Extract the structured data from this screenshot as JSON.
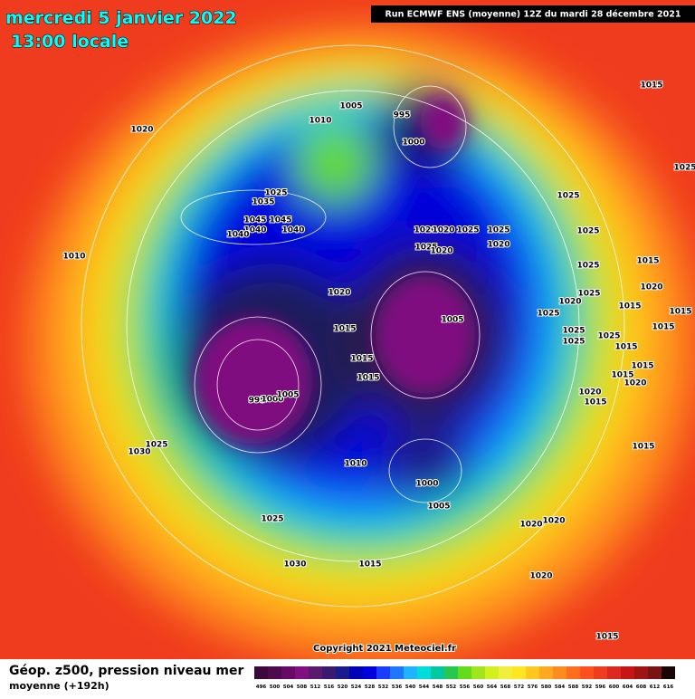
{
  "header": {
    "date": "mercredi 5 janvier 2022",
    "time": "13:00 locale",
    "run": "Run ECMWF ENS (moyenne) 12Z du mardi 28 décembre 2021"
  },
  "map": {
    "copyright": "Copyright 2021 Meteociel.fr",
    "isobar_labels": [
      1020,
      1010,
      1005,
      995,
      1000,
      1015,
      1025,
      1025,
      1035,
      1045,
      1045,
      1040,
      1040,
      1040,
      1020,
      1020,
      1025,
      1025,
      1020,
      1025,
      1020,
      1025,
      1025,
      1025,
      1015,
      1010,
      1020,
      1020,
      1025,
      1025,
      1015,
      1020,
      1015,
      1015,
      1005,
      1015,
      1025,
      1025,
      1025,
      1015,
      1015,
      1015,
      1015,
      1015,
      1020,
      1020,
      1015,
      995,
      1000,
      1005,
      1025,
      1030,
      1015,
      1010,
      1000,
      1005,
      1025,
      1020,
      1020,
      1030,
      1015,
      1020,
      1015
    ]
  },
  "footer": {
    "title": "Géop. z500, pression niveau mer",
    "subtitle": "moyenne  (+192h)"
  },
  "legend": {
    "values": [
      496,
      500,
      504,
      508,
      512,
      516,
      520,
      524,
      528,
      532,
      536,
      540,
      544,
      548,
      552,
      556,
      560,
      564,
      568,
      572,
      576,
      580,
      584,
      588,
      592,
      596,
      600,
      604,
      608,
      612,
      616
    ],
    "colors": [
      "#3b0a3b",
      "#4d0a4d",
      "#660a66",
      "#801080",
      "#5a1a6e",
      "#3a1a6e",
      "#1a1a8c",
      "#0000b4",
      "#0000dc",
      "#1a3cff",
      "#1e78ff",
      "#1eb4ff",
      "#00dcdc",
      "#00c8a0",
      "#28c850",
      "#64dc1e",
      "#a0e61e",
      "#d2f01e",
      "#f0f03c",
      "#ffe61e",
      "#ffc81e",
      "#ffaa1e",
      "#ff8c1e",
      "#ff6e1e",
      "#ff501e",
      "#f03c1e",
      "#dc281e",
      "#c81414",
      "#a01414",
      "#781414",
      "#1a0505"
    ]
  }
}
